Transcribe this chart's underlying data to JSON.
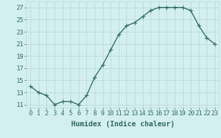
{
  "x": [
    0,
    1,
    2,
    3,
    4,
    5,
    6,
    7,
    8,
    9,
    10,
    11,
    12,
    13,
    14,
    15,
    16,
    17,
    18,
    19,
    20,
    21,
    22,
    23
  ],
  "y": [
    14,
    13,
    12.5,
    11,
    11.5,
    11.5,
    11,
    12.5,
    15.5,
    17.5,
    20,
    22.5,
    24,
    24.5,
    25.5,
    26.5,
    27,
    27,
    27,
    27,
    26.5,
    24,
    22,
    21
  ],
  "line_color": "#2e6b5e",
  "marker_color": "#2e6b5e",
  "bg_color": "#d4efef",
  "grid_color": "#b8d8d8",
  "xlabel": "Humidex (Indice chaleur)",
  "ylabel_ticks": [
    11,
    13,
    15,
    17,
    19,
    21,
    23,
    25,
    27
  ],
  "xlim": [
    -0.5,
    23.5
  ],
  "ylim": [
    10.5,
    28
  ],
  "xtick_labels": [
    "0",
    "1",
    "2",
    "3",
    "4",
    "5",
    "6",
    "7",
    "8",
    "9",
    "10",
    "11",
    "12",
    "13",
    "14",
    "15",
    "16",
    "17",
    "18",
    "19",
    "20",
    "21",
    "22",
    "23"
  ],
  "xlabel_color": "#2e6b5e",
  "tick_color": "#2e6b5e",
  "font_size_xlabel": 7.5,
  "font_size_ticks": 6.5,
  "linewidth": 1.0,
  "markersize": 2.5
}
